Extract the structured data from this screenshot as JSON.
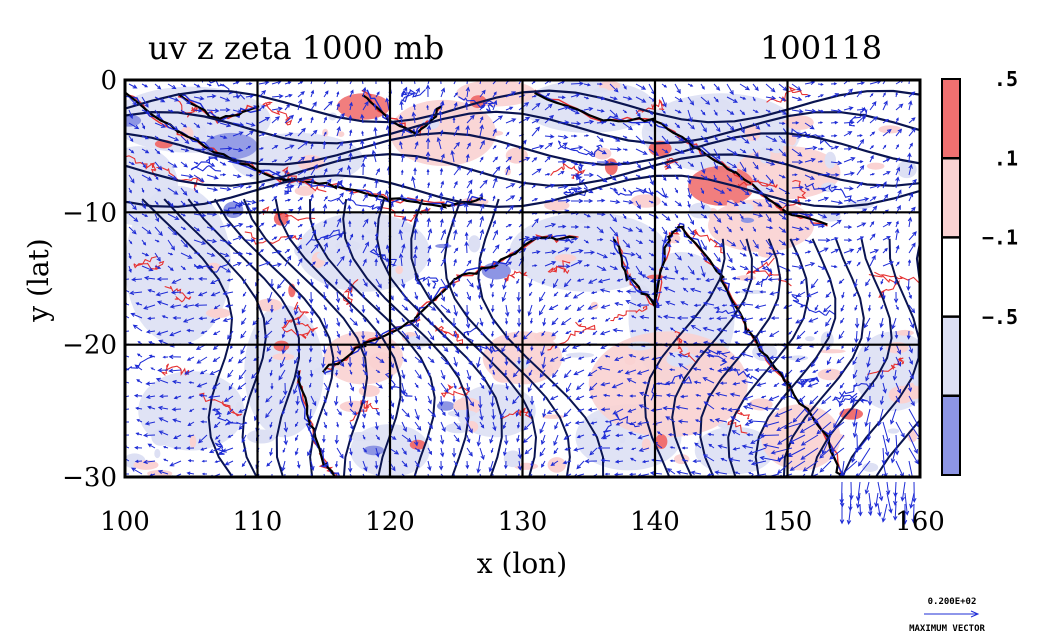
{
  "chart_data": {
    "type": "heatmap",
    "title": "uv z zeta 1000 mb",
    "date_label": "100118",
    "xlabel": "x (lon)",
    "ylabel": "y (lat)",
    "xlim": [
      100,
      160
    ],
    "ylim": [
      -30,
      0
    ],
    "x_ticks": [
      "100",
      "110",
      "120",
      "130",
      "140",
      "150",
      "160"
    ],
    "y_ticks": [
      "0",
      "−10",
      "−20",
      "−30"
    ],
    "grid": true,
    "colorbar": {
      "position": "right",
      "levels": [
        ".5",
        ".1",
        "−.1",
        "−.5"
      ],
      "bins": [
        {
          "range": "> .5",
          "color": "#f07070"
        },
        {
          "range": ".1 to .5",
          "color": "#fad2d2"
        },
        {
          "range": "−.1 to .1",
          "color": "#ffffff"
        },
        {
          "range": "−.5 to −.1",
          "color": "#dde0f4"
        },
        {
          "range": "< −.5",
          "color": "#8d95e4"
        }
      ]
    },
    "vector_legend": {
      "value": "0.200E+02",
      "caption": "MAXIMUM VECTOR"
    },
    "colors": {
      "positive": "#e63232",
      "negative": "#1e2cd6",
      "contour": "#0a1450"
    }
  }
}
